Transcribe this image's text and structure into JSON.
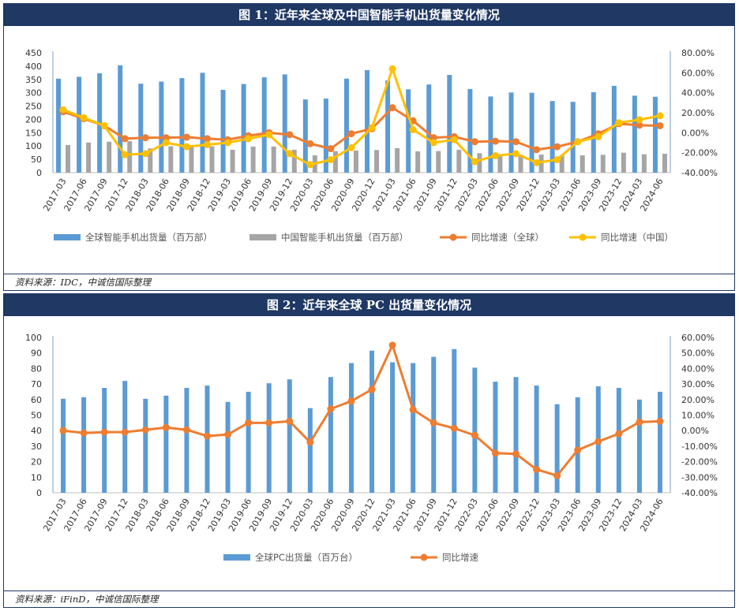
{
  "chart_data": [
    {
      "type": "bar+line",
      "title": "图 1：近年来全球及中国智能手机出货量变化情况",
      "source": "资料来源：IDC，中诚信国际整理",
      "categories": [
        "2017-03",
        "2017-06",
        "2017-09",
        "2017-12",
        "2018-03",
        "2018-06",
        "2018-09",
        "2018-12",
        "2019-03",
        "2019-06",
        "2019-09",
        "2019-12",
        "2020-03",
        "2020-06",
        "2020-09",
        "2020-12",
        "2021-03",
        "2021-06",
        "2021-09",
        "2021-12",
        "2022-03",
        "2022-06",
        "2022-09",
        "2022-12",
        "2023-03",
        "2023-06",
        "2023-09",
        "2023-12",
        "2024-03",
        "2024-06"
      ],
      "series": [
        {
          "name": "全球智能手机出货量（百万部）",
          "kind": "bar",
          "axis": "left",
          "color": "#5b9bd5",
          "values": [
            353,
            360,
            373,
            403,
            334,
            342,
            355,
            375,
            311,
            333,
            358,
            369,
            275,
            278,
            353,
            385,
            346,
            313,
            331,
            367,
            314,
            286,
            301,
            300,
            269,
            266,
            302,
            326,
            289,
            285
          ]
        },
        {
          "name": "中国智能手机出货量（百万部）",
          "kind": "bar",
          "axis": "left",
          "color": "#a5a5a5",
          "values": [
            104,
            113,
            116,
            118,
            91,
            99,
            104,
            99,
            86,
            98,
            98,
            86,
            65,
            81,
            83,
            85,
            92,
            80,
            81,
            86,
            73,
            68,
            67,
            68,
            66,
            65,
            67,
            75,
            69,
            71
          ]
        },
        {
          "name": "同比增速（全球）",
          "kind": "line",
          "axis": "right",
          "color": "#ed7d31",
          "values": [
            21,
            14,
            7,
            -6,
            -5,
            -5,
            -4.5,
            -6,
            -7,
            -3,
            0,
            -2,
            -11,
            -16,
            -1,
            4,
            25,
            12,
            -5,
            -4,
            -9,
            -8.5,
            -9,
            -17,
            -14,
            -9,
            -1,
            9,
            7.5,
            7
          ]
        },
        {
          "name": "同比增速（中国）",
          "kind": "line",
          "axis": "right",
          "color": "#ffc000",
          "values": [
            23,
            15,
            7,
            -22,
            -21,
            -10,
            -14,
            -12,
            -10,
            -6,
            -2,
            -21,
            -32,
            -27,
            -15,
            5,
            64,
            3,
            -10,
            -7,
            -29,
            -23,
            -21,
            -30,
            -27,
            -9,
            -4,
            10,
            13,
            17
          ]
        }
      ],
      "y_left": {
        "min": 0,
        "max": 450,
        "ticks": [
          "0",
          "50",
          "100",
          "150",
          "200",
          "250",
          "300",
          "350",
          "400",
          "450"
        ]
      },
      "y_right": {
        "min": -40,
        "max": 80,
        "ticks": [
          "-40.00%",
          "-20.00%",
          "0.00%",
          "20.00%",
          "40.00%",
          "60.00%",
          "80.00%"
        ]
      },
      "grid": false,
      "legend_position": "bottom"
    },
    {
      "type": "bar+line",
      "title": "图 2：近年来全球 PC 出货量变化情况",
      "source": "资料来源：iFinD，中诚信国际整理",
      "categories": [
        "2017-03",
        "2017-06",
        "2017-09",
        "2017-12",
        "2018-03",
        "2018-06",
        "2018-09",
        "2018-12",
        "2019-03",
        "2019-06",
        "2019-09",
        "2019-12",
        "2020-03",
        "2020-06",
        "2020-09",
        "2020-12",
        "2021-03",
        "2021-06",
        "2021-09",
        "2021-12",
        "2022-03",
        "2022-06",
        "2022-09",
        "2022-12",
        "2023-03",
        "2023-06",
        "2023-09",
        "2023-12",
        "2024-03",
        "2024-06"
      ],
      "series": [
        {
          "name": "全球PC出货量（百万台）",
          "kind": "bar",
          "axis": "left",
          "color": "#5b9bd5",
          "values": [
            60.5,
            61.5,
            67.5,
            72,
            60.5,
            62.5,
            67.5,
            69,
            58.5,
            65,
            70.5,
            73,
            54.5,
            74.5,
            83.5,
            91.5,
            84,
            83.5,
            87.5,
            92.5,
            80.5,
            71.5,
            74.5,
            69,
            57,
            61.5,
            68.5,
            67.5,
            60,
            65
          ]
        },
        {
          "name": "同比增速",
          "kind": "line",
          "axis": "right",
          "color": "#ed7d31",
          "values": [
            0,
            -1.5,
            -1,
            -1,
            0.5,
            2,
            0.5,
            -3.5,
            -2.5,
            5,
            5,
            6,
            -7.5,
            14,
            19,
            26.5,
            55,
            13.5,
            5,
            1.5,
            -3,
            -14.5,
            -15,
            -25,
            -29,
            -12.5,
            -7,
            -2,
            5.5,
            6
          ]
        }
      ],
      "y_left": {
        "min": 0,
        "max": 100,
        "ticks": [
          "0",
          "10",
          "20",
          "30",
          "40",
          "50",
          "60",
          "70",
          "80",
          "90",
          "100"
        ]
      },
      "y_right": {
        "min": -40,
        "max": 60,
        "ticks": [
          "-40.00%",
          "-30.00%",
          "-20.00%",
          "-10.00%",
          "0.00%",
          "10.00%",
          "20.00%",
          "30.00%",
          "40.00%",
          "50.00%",
          "60.00%"
        ]
      },
      "grid": false,
      "legend_position": "bottom"
    }
  ]
}
